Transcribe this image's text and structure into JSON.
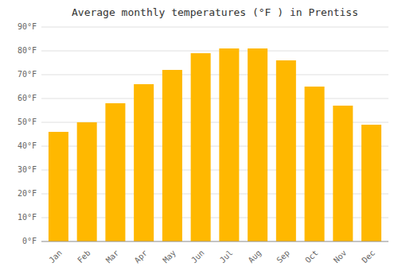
{
  "chart_data": {
    "type": "bar",
    "title": "Average monthly temperatures (°F ) in Prentiss",
    "categories": [
      "Jan",
      "Feb",
      "Mar",
      "Apr",
      "May",
      "Jun",
      "Jul",
      "Aug",
      "Sep",
      "Oct",
      "Nov",
      "Dec"
    ],
    "values": [
      46,
      50,
      58,
      66,
      72,
      79,
      81,
      81,
      76,
      65,
      57,
      49
    ],
    "color": "#FFB800",
    "ylim": [
      0,
      90
    ],
    "yticks": [
      {
        "value": 0,
        "label": "0°F"
      },
      {
        "value": 10,
        "label": "10°F"
      },
      {
        "value": 20,
        "label": "20°F"
      },
      {
        "value": 30,
        "label": "30°F"
      },
      {
        "value": 40,
        "label": "40°F"
      },
      {
        "value": 50,
        "label": "50°F"
      },
      {
        "value": 60,
        "label": "60°F"
      },
      {
        "value": 70,
        "label": "70°F"
      },
      {
        "value": 80,
        "label": "80°F"
      },
      {
        "value": 90,
        "label": "90°F"
      }
    ],
    "grid": true
  }
}
